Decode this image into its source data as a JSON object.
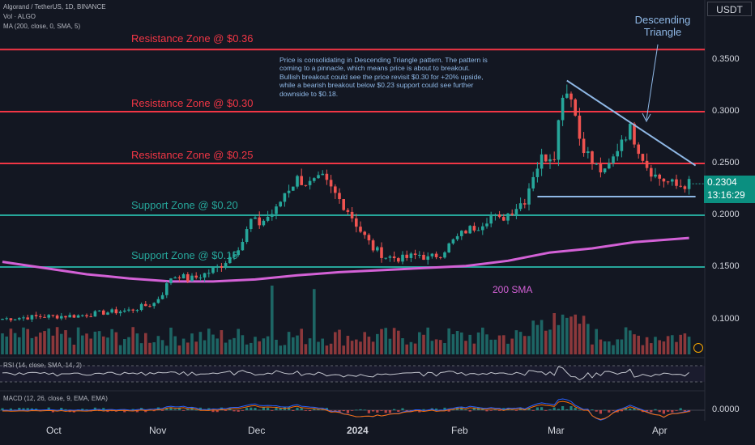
{
  "header": {
    "symbol_line": "Algorand / TetherUS, 1D, BINANCE",
    "vol_line": "Vol · ALGO",
    "ma_line": "MA (200, close, 0, SMA, 5)",
    "rsi_line": "RSI (14, close, SMA, 14, 2)",
    "macd_line": "MACD (12, 26, close, 9, EMA, EMA)",
    "currency": "USDT"
  },
  "zones": [
    {
      "label": "Resistance Zone @ $0.36",
      "price": 0.36,
      "kind": "resistance"
    },
    {
      "label": "Resistance Zone @ $0.30",
      "price": 0.3,
      "kind": "resistance"
    },
    {
      "label": "Resistance Zone @ $0.25",
      "price": 0.25,
      "kind": "resistance"
    },
    {
      "label": "Support Zone @ $0.20",
      "price": 0.2,
      "kind": "support"
    },
    {
      "label": "Support Zone @ $0.15",
      "price": 0.15,
      "kind": "support"
    }
  ],
  "annotations": {
    "note": "Price is consolidating in Descending Triangle pattern. The pattern is coming to a pinnacle, which means price is about to breakout. Bullish breakout could see the price revisit $0.30 for +20% upside, while a bearish breakout below $0.23 support could see further downside to $0.18.",
    "pattern_line1": "Descending",
    "pattern_line2": "Triangle",
    "sma_label": "200 SMA"
  },
  "current": {
    "price": "0.2304",
    "countdown": "13:16:29"
  },
  "colors": {
    "background": "#131722",
    "up": "#26a69a",
    "down": "#ef5350",
    "resistance": "#f23645",
    "support": "#26a69a",
    "sma": "#d361d6",
    "annotation": "#8fb8e6"
  },
  "chart_data": {
    "type": "candlestick",
    "price_axis": {
      "ticks": [
        "0.3500",
        "0.3000",
        "0.2500",
        "0.2000",
        "0.1500",
        "0.1000"
      ],
      "range": [
        0.08,
        0.37
      ]
    },
    "macd_axis": {
      "ticks": [
        "0.0000"
      ]
    },
    "x_labels": [
      {
        "label": "Oct",
        "bold": false
      },
      {
        "label": "Nov",
        "bold": false
      },
      {
        "label": "Dec",
        "bold": false
      },
      {
        "label": "2024",
        "bold": true
      },
      {
        "label": "Feb",
        "bold": false
      },
      {
        "label": "Mar",
        "bold": false
      },
      {
        "label": "Apr",
        "bold": false
      }
    ],
    "close_path": [
      [
        0,
        0.1
      ],
      [
        8,
        0.102
      ],
      [
        18,
        0.103
      ],
      [
        24,
        0.106
      ],
      [
        30,
        0.108
      ],
      [
        36,
        0.115
      ],
      [
        38,
        0.125
      ],
      [
        40,
        0.14
      ],
      [
        42,
        0.142
      ],
      [
        44,
        0.138
      ],
      [
        46,
        0.14
      ],
      [
        49,
        0.145
      ],
      [
        52,
        0.152
      ],
      [
        54,
        0.16
      ],
      [
        57,
        0.175
      ],
      [
        59,
        0.195
      ],
      [
        61,
        0.192
      ],
      [
        65,
        0.205
      ],
      [
        67,
        0.222
      ],
      [
        70,
        0.235
      ],
      [
        73,
        0.23
      ],
      [
        76,
        0.235
      ],
      [
        79,
        0.22
      ],
      [
        82,
        0.205
      ],
      [
        85,
        0.185
      ],
      [
        88,
        0.168
      ],
      [
        91,
        0.16
      ],
      [
        95,
        0.158
      ],
      [
        99,
        0.162
      ],
      [
        101,
        0.158
      ],
      [
        104,
        0.163
      ],
      [
        107,
        0.175
      ],
      [
        110,
        0.185
      ],
      [
        113,
        0.19
      ],
      [
        116,
        0.2
      ],
      [
        118,
        0.195
      ],
      [
        121,
        0.205
      ],
      [
        124,
        0.215
      ],
      [
        126,
        0.24
      ],
      [
        128,
        0.255
      ],
      [
        131,
        0.26
      ],
      [
        133,
        0.32
      ],
      [
        135,
        0.318
      ],
      [
        137,
        0.275
      ],
      [
        140,
        0.25
      ],
      [
        143,
        0.24
      ],
      [
        145,
        0.255
      ],
      [
        147,
        0.275
      ],
      [
        149,
        0.283
      ],
      [
        151,
        0.265
      ],
      [
        153,
        0.248
      ],
      [
        155,
        0.238
      ],
      [
        158,
        0.232
      ],
      [
        160,
        0.228
      ],
      [
        163,
        0.2304
      ]
    ],
    "sma_200": [
      [
        0,
        0.155
      ],
      [
        10,
        0.149
      ],
      [
        20,
        0.143
      ],
      [
        30,
        0.139
      ],
      [
        40,
        0.136
      ],
      [
        50,
        0.136
      ],
      [
        60,
        0.138
      ],
      [
        70,
        0.142
      ],
      [
        80,
        0.145
      ],
      [
        90,
        0.147
      ],
      [
        100,
        0.149
      ],
      [
        110,
        0.151
      ],
      [
        120,
        0.156
      ],
      [
        130,
        0.164
      ],
      [
        140,
        0.168
      ],
      [
        150,
        0.174
      ],
      [
        163,
        0.178
      ]
    ],
    "triangle": {
      "upper": [
        [
          134,
          0.33
        ],
        [
          163,
          0.248
        ]
      ],
      "lower": [
        [
          127,
          0.218
        ],
        [
          163,
          0.218
        ]
      ]
    },
    "volume_spikes": [
      [
        64,
        1.0
      ],
      [
        74,
        0.95
      ],
      [
        131,
        0.6
      ],
      [
        135,
        0.55
      ],
      [
        128,
        0.5
      ]
    ],
    "current_price": 0.2304
  }
}
